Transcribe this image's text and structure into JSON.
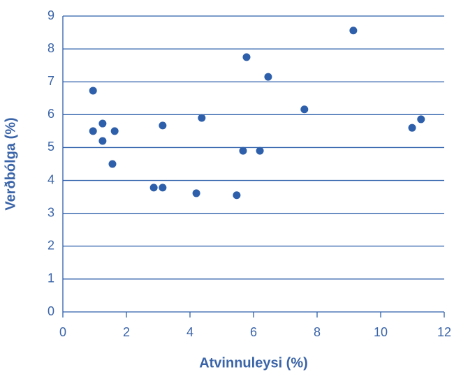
{
  "chart_data": {
    "type": "scatter",
    "xlabel": "Atvinnuleysi (%)",
    "ylabel": "Verðbólga (%)",
    "x": [
      0.95,
      0.95,
      1.25,
      1.25,
      1.63,
      1.56,
      3.14,
      2.86,
      3.14,
      4.37,
      4.2,
      5.47,
      5.78,
      5.67,
      6.2,
      6.46,
      7.6,
      9.14,
      10.99,
      11.27
    ],
    "y": [
      6.73,
      5.5,
      5.73,
      5.2,
      5.5,
      4.5,
      5.67,
      3.78,
      3.78,
      5.9,
      3.61,
      3.55,
      7.75,
      4.9,
      4.9,
      7.15,
      6.16,
      8.56,
      5.6,
      5.86
    ],
    "color": "#2e5faa",
    "xlim": [
      0,
      12
    ],
    "xticks": [
      0,
      2,
      4,
      6,
      8,
      10,
      12
    ],
    "ylim": [
      0,
      9
    ],
    "yticks": [
      0,
      1,
      2,
      3,
      4,
      5,
      6,
      7,
      8,
      9
    ],
    "grid": true
  }
}
